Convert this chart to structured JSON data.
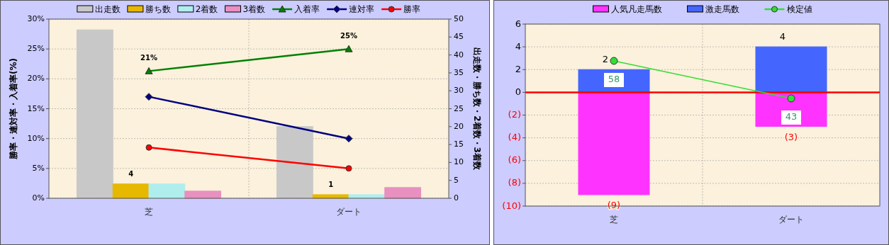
{
  "chart_data": [
    {
      "type": "bar",
      "categories": [
        "芝",
        "ダート"
      ],
      "ylabel": "勝率・連対率・入着率(%)",
      "y2label": "出走数・勝ち数・2着数・3着数",
      "ylim": [
        0,
        30
      ],
      "yticks": [
        {
          "value": 0,
          "label": "0%"
        },
        {
          "value": 5,
          "label": "5%"
        },
        {
          "value": 10,
          "label": "10%"
        },
        {
          "value": 15,
          "label": "15%"
        },
        {
          "value": 20,
          "label": "20%"
        },
        {
          "value": 25,
          "label": "25%"
        },
        {
          "value": 30,
          "label": "30%"
        }
      ],
      "y2lim": [
        0,
        50
      ],
      "y2ticks": [
        0,
        5,
        10,
        15,
        20,
        25,
        30,
        35,
        40,
        45,
        50
      ],
      "grid": true,
      "legend": "top",
      "series": [
        {
          "name": "出走数",
          "axis": "y2",
          "color": "#c8c8c8",
          "values": [
            47,
            20
          ]
        },
        {
          "name": "勝ち数",
          "axis": "y2",
          "color": "#e6b800",
          "values": [
            4,
            1
          ],
          "value_labels": [
            "4",
            "1"
          ]
        },
        {
          "name": "2着数",
          "axis": "y2",
          "color": "#b0eeee",
          "values": [
            4,
            1
          ]
        },
        {
          "name": "3着数",
          "axis": "y2",
          "color": "#e890c0",
          "values": [
            2,
            3
          ]
        },
        {
          "name": "入着率",
          "type": "line",
          "marker": "triangle",
          "color": "#008000",
          "values": [
            21.3,
            25
          ],
          "value_labels": [
            "21%",
            "25%"
          ]
        },
        {
          "name": "連対率",
          "type": "line",
          "marker": "diamond",
          "color": "#000080",
          "values": [
            17,
            10
          ]
        },
        {
          "name": "勝率",
          "type": "line",
          "marker": "circle",
          "color": "#ff0000",
          "values": [
            8.5,
            5
          ]
        }
      ]
    },
    {
      "type": "bar",
      "stacked": true,
      "categories": [
        "芝",
        "ダート"
      ],
      "ylim": [
        -10,
        6
      ],
      "yticks": [
        {
          "value": -10,
          "label": "(10)"
        },
        {
          "value": -8,
          "label": "(8)"
        },
        {
          "value": -6,
          "label": "(6)"
        },
        {
          "value": -4,
          "label": "(4)"
        },
        {
          "value": -2,
          "label": "(2)"
        },
        0,
        2,
        4,
        6
      ],
      "y2lim": [
        0,
        72.7
      ],
      "grid": true,
      "legend": "top",
      "ref_lines": [
        {
          "axis": "y",
          "value": 0,
          "color": "#ff0000"
        }
      ],
      "series": [
        {
          "name": "人気凡走馬数",
          "color": "#ff33ff",
          "values": [
            -9,
            -3
          ],
          "value_labels": [
            "(9)",
            "(3)"
          ]
        },
        {
          "name": "激走馬数",
          "color": "#4466ff",
          "values": [
            2,
            4
          ],
          "value_labels": [
            "2",
            "4"
          ]
        },
        {
          "name": "検定値",
          "type": "line",
          "axis": "y2",
          "marker": "circle",
          "color": "#33dd33",
          "values": [
            58,
            43
          ],
          "data_labels": true
        }
      ]
    }
  ]
}
